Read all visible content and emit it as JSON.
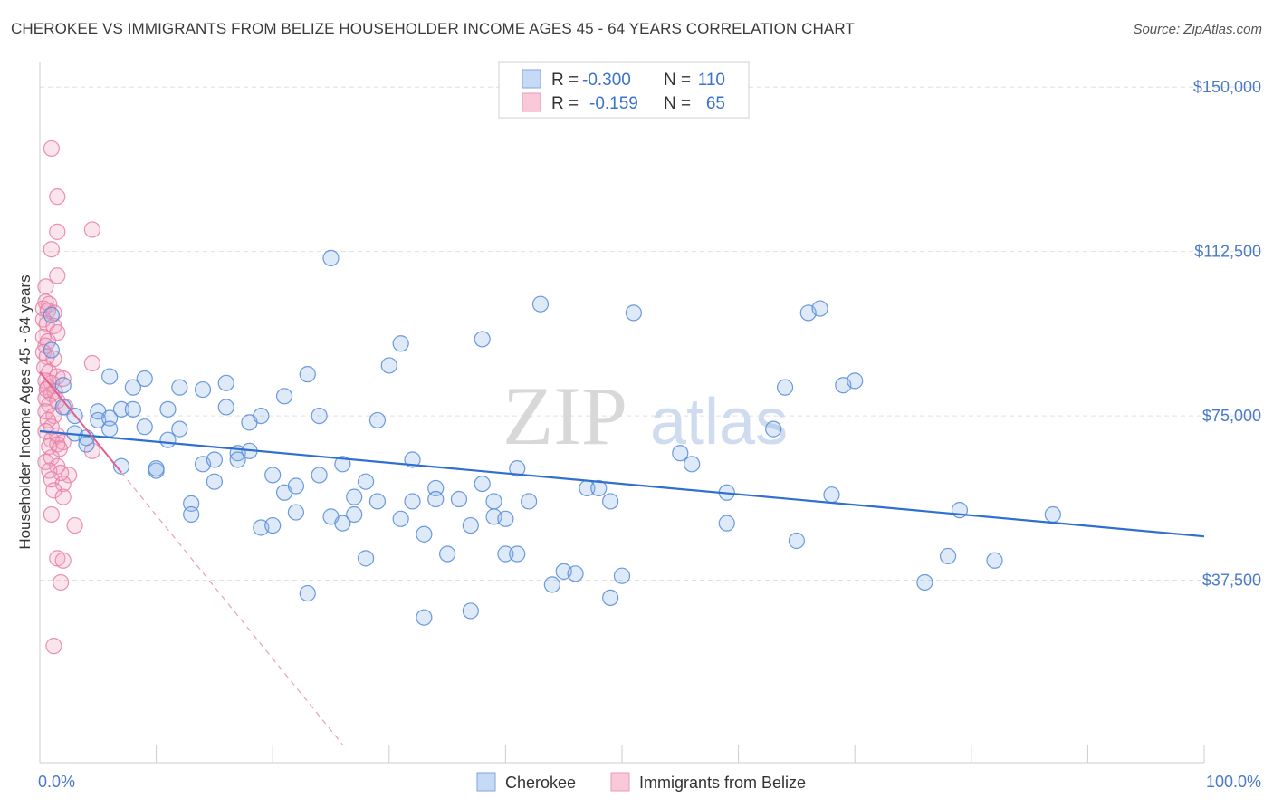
{
  "header": {
    "title": "CHEROKEE VS IMMIGRANTS FROM BELIZE HOUSEHOLDER INCOME AGES 45 - 64 YEARS CORRELATION CHART",
    "source": "Source: ZipAtlas.com"
  },
  "watermark": {
    "zip": "ZIP",
    "atlas": "atlas"
  },
  "legend_box": {
    "rows": [
      {
        "r_label": "R =",
        "r_value": "-0.300",
        "n_label": "N =",
        "n_value": "110"
      },
      {
        "r_label": "R =",
        "r_value": "-0.159",
        "n_label": "N =",
        "n_value": "65"
      }
    ]
  },
  "bottom_legend": {
    "series1": "Cherokee",
    "series2": "Immigrants from Belize"
  },
  "chart_data": {
    "type": "scatter",
    "title": "CHEROKEE VS IMMIGRANTS FROM BELIZE HOUSEHOLDER INCOME AGES 45 - 64 YEARS CORRELATION CHART",
    "xlabel": "",
    "ylabel": "Householder Income Ages 45 - 64 years",
    "x_tick_labels": [
      "0.0%",
      "100.0%"
    ],
    "y_tick_labels": [
      "$37,500",
      "$75,000",
      "$112,500",
      "$150,000"
    ],
    "y_ticks": [
      37500,
      75000,
      112500,
      150000
    ],
    "xlim": [
      0,
      100
    ],
    "ylim": [
      0,
      155000
    ],
    "grid": true,
    "legend_position": "top-center",
    "colors": {
      "cherokee": "#5b8fd9",
      "belize": "#e87ea3",
      "tick": "#4a7ac8"
    },
    "series": [
      {
        "name": "Cherokee",
        "r": -0.3,
        "n": 110,
        "trend": {
          "x": [
            0,
            100
          ],
          "y": [
            71500,
            47500
          ]
        },
        "points": [
          [
            1,
            98000
          ],
          [
            1,
            90000
          ],
          [
            2,
            82000
          ],
          [
            2,
            77000
          ],
          [
            3,
            75000
          ],
          [
            4,
            70000
          ],
          [
            4,
            68500
          ],
          [
            5,
            76000
          ],
          [
            5,
            74000
          ],
          [
            6,
            84000
          ],
          [
            6,
            74500
          ],
          [
            7,
            76500
          ],
          [
            7,
            63500
          ],
          [
            8,
            81500
          ],
          [
            8,
            76500
          ],
          [
            9,
            83500
          ],
          [
            9,
            72500
          ],
          [
            10,
            62500
          ],
          [
            10,
            63000
          ],
          [
            11,
            76500
          ],
          [
            11,
            69500
          ],
          [
            12,
            72000
          ],
          [
            12,
            81500
          ],
          [
            13,
            55000
          ],
          [
            13,
            52500
          ],
          [
            14,
            81000
          ],
          [
            14,
            64000
          ],
          [
            15,
            65000
          ],
          [
            15,
            60000
          ],
          [
            16,
            82500
          ],
          [
            16,
            77000
          ],
          [
            17,
            66500
          ],
          [
            17,
            65000
          ],
          [
            18,
            73500
          ],
          [
            18,
            67000
          ],
          [
            19,
            75000
          ],
          [
            19,
            49500
          ],
          [
            20,
            61500
          ],
          [
            20,
            50000
          ],
          [
            21,
            79500
          ],
          [
            21,
            57500
          ],
          [
            22,
            59000
          ],
          [
            22,
            53000
          ],
          [
            23,
            34500
          ],
          [
            23,
            84500
          ],
          [
            24,
            75000
          ],
          [
            24,
            61500
          ],
          [
            25,
            111000
          ],
          [
            25,
            52000
          ],
          [
            26,
            50500
          ],
          [
            26,
            64000
          ],
          [
            27,
            52500
          ],
          [
            27,
            56500
          ],
          [
            28,
            42500
          ],
          [
            28,
            60000
          ],
          [
            29,
            74000
          ],
          [
            29,
            55500
          ],
          [
            30,
            86500
          ],
          [
            31,
            91500
          ],
          [
            31,
            51500
          ],
          [
            32,
            55500
          ],
          [
            32,
            65000
          ],
          [
            33,
            48000
          ],
          [
            33,
            29000
          ],
          [
            34,
            58500
          ],
          [
            34,
            56000
          ],
          [
            35,
            43500
          ],
          [
            36,
            56000
          ],
          [
            37,
            30500
          ],
          [
            37,
            50000
          ],
          [
            38,
            92500
          ],
          [
            38,
            59500
          ],
          [
            39,
            52000
          ],
          [
            39,
            55500
          ],
          [
            40,
            51500
          ],
          [
            40,
            43500
          ],
          [
            41,
            43500
          ],
          [
            41,
            63000
          ],
          [
            42,
            55500
          ],
          [
            43,
            100500
          ],
          [
            44,
            36500
          ],
          [
            45,
            39500
          ],
          [
            46,
            39000
          ],
          [
            47,
            58500
          ],
          [
            48,
            58500
          ],
          [
            49,
            33500
          ],
          [
            49,
            55500
          ],
          [
            50,
            38500
          ],
          [
            51,
            98500
          ],
          [
            55,
            66500
          ],
          [
            56,
            64000
          ],
          [
            59,
            57500
          ],
          [
            59,
            50500
          ],
          [
            63,
            72000
          ],
          [
            64,
            81500
          ],
          [
            65,
            46500
          ],
          [
            66,
            98500
          ],
          [
            67,
            99500
          ],
          [
            68,
            57000
          ],
          [
            69,
            82000
          ],
          [
            70,
            83000
          ],
          [
            76,
            37000
          ],
          [
            78,
            43000
          ],
          [
            79,
            53500
          ],
          [
            82,
            42000
          ],
          [
            87,
            52500
          ],
          [
            3,
            71000
          ],
          [
            6,
            72000
          ]
        ]
      },
      {
        "name": "Immigrants from Belize",
        "r": -0.159,
        "n": 65,
        "trend": {
          "x": [
            0,
            26
          ],
          "y": [
            85000,
            0
          ]
        },
        "trend_solid_until_x": 7,
        "points": [
          [
            1,
            136000
          ],
          [
            1.5,
            125000
          ],
          [
            1.5,
            117000
          ],
          [
            4.5,
            117500
          ],
          [
            1,
            113000
          ],
          [
            1.5,
            107000
          ],
          [
            0.5,
            104500
          ],
          [
            0.5,
            101000
          ],
          [
            0.8,
            100500
          ],
          [
            0.3,
            99500
          ],
          [
            0.7,
            99000
          ],
          [
            1.2,
            98500
          ],
          [
            0.3,
            97000
          ],
          [
            0.6,
            96000
          ],
          [
            1.2,
            95500
          ],
          [
            1.5,
            94000
          ],
          [
            0.3,
            93000
          ],
          [
            0.7,
            92000
          ],
          [
            0.5,
            91000
          ],
          [
            0.3,
            89500
          ],
          [
            0.6,
            88500
          ],
          [
            1.2,
            88000
          ],
          [
            4.5,
            87000
          ],
          [
            0.4,
            86000
          ],
          [
            0.8,
            85000
          ],
          [
            1.5,
            84000
          ],
          [
            2,
            83500
          ],
          [
            0.5,
            83000
          ],
          [
            1,
            82500
          ],
          [
            0.7,
            81500
          ],
          [
            1.3,
            80500
          ],
          [
            1,
            80000
          ],
          [
            0.5,
            79000
          ],
          [
            1.5,
            78500
          ],
          [
            0.8,
            77500
          ],
          [
            2.2,
            77000
          ],
          [
            0.5,
            76000
          ],
          [
            1.2,
            75000
          ],
          [
            0.7,
            74000
          ],
          [
            1,
            72500
          ],
          [
            0.5,
            71500
          ],
          [
            1.5,
            70500
          ],
          [
            1,
            69500
          ],
          [
            2,
            69000
          ],
          [
            1.5,
            68500
          ],
          [
            0.8,
            68000
          ],
          [
            1.7,
            67500
          ],
          [
            4.5,
            67000
          ],
          [
            1,
            65500
          ],
          [
            0.5,
            64500
          ],
          [
            1.5,
            63500
          ],
          [
            0.8,
            62500
          ],
          [
            2.5,
            61500
          ],
          [
            1,
            60500
          ],
          [
            2,
            59500
          ],
          [
            1.2,
            58000
          ],
          [
            2,
            56500
          ],
          [
            1,
            52500
          ],
          [
            3,
            50000
          ],
          [
            1.5,
            42500
          ],
          [
            2,
            42000
          ],
          [
            1.8,
            37000
          ],
          [
            1.2,
            22500
          ],
          [
            0.6,
            81000
          ],
          [
            1.8,
            62000
          ]
        ]
      }
    ]
  }
}
